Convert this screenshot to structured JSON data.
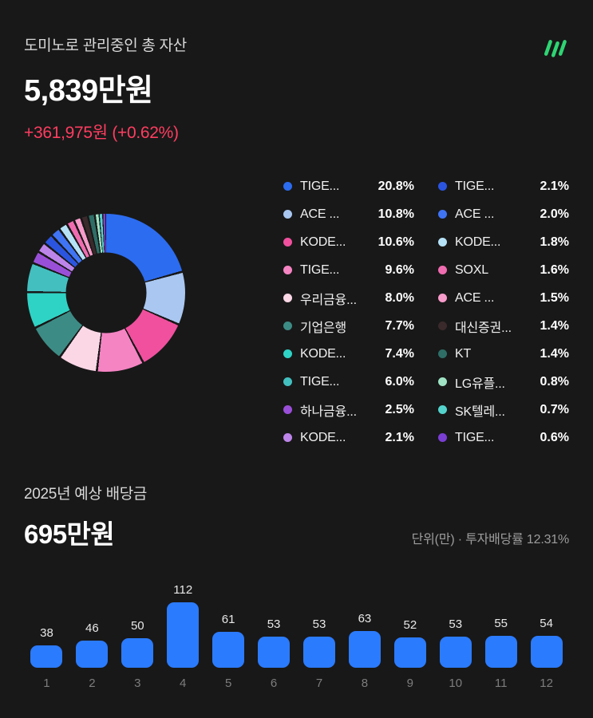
{
  "page": {
    "bg": "#181818"
  },
  "header": {
    "title": "도미노로 관리중인 총 자산",
    "amount": "5,839만원",
    "change": "+361,975원 (+0.62%)",
    "change_color": "#ff3d60"
  },
  "logo": {
    "name": "domino-logo",
    "color": "#2ed573"
  },
  "dividend": {
    "title": "2025년 예상 배당금",
    "amount": "695만원",
    "note": "단위(만) · 투자배당률 12.31%"
  },
  "chart_data": [
    {
      "type": "pie",
      "title": "도미노로 관리중인 총 자산",
      "donut": true,
      "legend_position": "right",
      "slices": [
        {
          "label": "TIGE...",
          "pct": "20.8%",
          "value": 20.8,
          "color": "#2c6cf0"
        },
        {
          "label": "ACE ...",
          "pct": "10.8%",
          "value": 10.8,
          "color": "#a9c7f0"
        },
        {
          "label": "KODE...",
          "pct": "10.6%",
          "value": 10.6,
          "color": "#f0509e"
        },
        {
          "label": "TIGE...",
          "pct": "9.6%",
          "value": 9.6,
          "color": "#f584c3"
        },
        {
          "label": "우리금융...",
          "pct": "8.0%",
          "value": 8.0,
          "color": "#fbd7e6"
        },
        {
          "label": "기업은행",
          "pct": "7.7%",
          "value": 7.7,
          "color": "#3d8b85"
        },
        {
          "label": "KODE...",
          "pct": "7.4%",
          "value": 7.4,
          "color": "#2fd3c5"
        },
        {
          "label": "TIGE...",
          "pct": "6.0%",
          "value": 6.0,
          "color": "#43bfc0"
        },
        {
          "label": "하나금융...",
          "pct": "2.5%",
          "value": 2.5,
          "color": "#9a4fd8"
        },
        {
          "label": "KODE...",
          "pct": "2.1%",
          "value": 2.1,
          "color": "#bd85ea"
        },
        {
          "label": "TIGE...",
          "pct": "2.1%",
          "value": 2.1,
          "color": "#2b55e0"
        },
        {
          "label": "ACE ...",
          "pct": "2.0%",
          "value": 2.0,
          "color": "#3f74f5"
        },
        {
          "label": "KODE...",
          "pct": "1.8%",
          "value": 1.8,
          "color": "#b5e2f7"
        },
        {
          "label": "SOXL",
          "pct": "1.6%",
          "value": 1.6,
          "color": "#ef6cb0"
        },
        {
          "label": "ACE ...",
          "pct": "1.5%",
          "value": 1.5,
          "color": "#f79bca"
        },
        {
          "label": "대신증권...",
          "pct": "1.4%",
          "value": 1.4,
          "color": "#3a2a2b"
        },
        {
          "label": "KT",
          "pct": "1.4%",
          "value": 1.4,
          "color": "#2e6e67"
        },
        {
          "label": "LG유플...",
          "pct": "0.8%",
          "value": 0.8,
          "color": "#9fe3c4"
        },
        {
          "label": "SK텔레...",
          "pct": "0.7%",
          "value": 0.7,
          "color": "#54d3cd"
        },
        {
          "label": "TIGE...",
          "pct": "0.6%",
          "value": 0.6,
          "color": "#7a3ed3"
        }
      ]
    },
    {
      "type": "bar",
      "title": "2025년 예상 배당금 (월별)",
      "categories": [
        "1",
        "2",
        "3",
        "4",
        "5",
        "6",
        "7",
        "8",
        "9",
        "10",
        "11",
        "12"
      ],
      "values": [
        38,
        46,
        50,
        112,
        61,
        53,
        53,
        63,
        52,
        53,
        55,
        54
      ],
      "bar_color": "#2b7bff",
      "ylim": [
        0,
        112
      ],
      "unit": "만",
      "grid": false,
      "legend_position": "none"
    }
  ]
}
